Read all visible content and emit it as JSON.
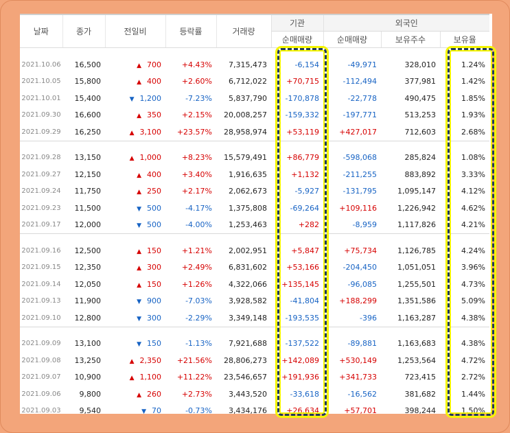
{
  "header": {
    "date": "날짜",
    "close": "종가",
    "change": "전일비",
    "rate": "등락률",
    "volume": "거래량",
    "institution": "기관",
    "inst_net": "순매매량",
    "foreign": "외국인",
    "for_net": "순매매량",
    "for_hold": "보유주수",
    "for_rate": "보유율"
  },
  "groups": [
    {
      "rows": [
        {
          "date": "2021.10.06",
          "close": "16,500",
          "dir": "up",
          "chg": "700",
          "rate": "+4.43%",
          "vol": "7,315,473",
          "inst": "-6,154",
          "fnet": "-49,971",
          "hold": "328,010",
          "hrate": "1.24%"
        },
        {
          "date": "2021.10.05",
          "close": "15,800",
          "dir": "up",
          "chg": "400",
          "rate": "+2.60%",
          "vol": "6,712,022",
          "inst": "+70,715",
          "fnet": "-112,494",
          "hold": "377,981",
          "hrate": "1.42%"
        },
        {
          "date": "2021.10.01",
          "close": "15,400",
          "dir": "down",
          "chg": "1,200",
          "rate": "-7.23%",
          "vol": "5,837,790",
          "inst": "-170,878",
          "fnet": "-22,778",
          "hold": "490,475",
          "hrate": "1.85%"
        },
        {
          "date": "2021.09.30",
          "close": "16,600",
          "dir": "up",
          "chg": "350",
          "rate": "+2.15%",
          "vol": "20,008,257",
          "inst": "-159,332",
          "fnet": "-197,771",
          "hold": "513,253",
          "hrate": "1.93%"
        },
        {
          "date": "2021.09.29",
          "close": "16,250",
          "dir": "up",
          "chg": "3,100",
          "rate": "+23.57%",
          "vol": "28,958,974",
          "inst": "+53,119",
          "fnet": "+427,017",
          "hold": "712,603",
          "hrate": "2.68%"
        }
      ]
    },
    {
      "rows": [
        {
          "date": "2021.09.28",
          "close": "13,150",
          "dir": "up",
          "chg": "1,000",
          "rate": "+8.23%",
          "vol": "15,579,491",
          "inst": "+86,779",
          "fnet": "-598,068",
          "hold": "285,824",
          "hrate": "1.08%"
        },
        {
          "date": "2021.09.27",
          "close": "12,150",
          "dir": "up",
          "chg": "400",
          "rate": "+3.40%",
          "vol": "1,916,635",
          "inst": "+1,132",
          "fnet": "-211,255",
          "hold": "883,892",
          "hrate": "3.33%"
        },
        {
          "date": "2021.09.24",
          "close": "11,750",
          "dir": "up",
          "chg": "250",
          "rate": "+2.17%",
          "vol": "2,062,673",
          "inst": "-5,927",
          "fnet": "-131,795",
          "hold": "1,095,147",
          "hrate": "4.12%"
        },
        {
          "date": "2021.09.23",
          "close": "11,500",
          "dir": "down",
          "chg": "500",
          "rate": "-4.17%",
          "vol": "1,375,808",
          "inst": "-69,264",
          "fnet": "+109,116",
          "hold": "1,226,942",
          "hrate": "4.62%"
        },
        {
          "date": "2021.09.17",
          "close": "12,000",
          "dir": "down",
          "chg": "500",
          "rate": "-4.00%",
          "vol": "1,253,463",
          "inst": "+282",
          "fnet": "-8,959",
          "hold": "1,117,826",
          "hrate": "4.21%"
        }
      ]
    },
    {
      "rows": [
        {
          "date": "2021.09.16",
          "close": "12,500",
          "dir": "up",
          "chg": "150",
          "rate": "+1.21%",
          "vol": "2,002,951",
          "inst": "+5,847",
          "fnet": "+75,734",
          "hold": "1,126,785",
          "hrate": "4.24%"
        },
        {
          "date": "2021.09.15",
          "close": "12,350",
          "dir": "up",
          "chg": "300",
          "rate": "+2.49%",
          "vol": "6,831,602",
          "inst": "+53,166",
          "fnet": "-204,450",
          "hold": "1,051,051",
          "hrate": "3.96%"
        },
        {
          "date": "2021.09.14",
          "close": "12,050",
          "dir": "up",
          "chg": "150",
          "rate": "+1.26%",
          "vol": "4,322,066",
          "inst": "+135,145",
          "fnet": "-96,085",
          "hold": "1,255,501",
          "hrate": "4.73%"
        },
        {
          "date": "2021.09.13",
          "close": "11,900",
          "dir": "down",
          "chg": "900",
          "rate": "-7.03%",
          "vol": "3,928,582",
          "inst": "-41,804",
          "fnet": "+188,299",
          "hold": "1,351,586",
          "hrate": "5.09%"
        },
        {
          "date": "2021.09.10",
          "close": "12,800",
          "dir": "down",
          "chg": "300",
          "rate": "-2.29%",
          "vol": "3,349,148",
          "inst": "-193,535",
          "fnet": "-396",
          "hold": "1,163,287",
          "hrate": "4.38%"
        }
      ]
    },
    {
      "rows": [
        {
          "date": "2021.09.09",
          "close": "13,100",
          "dir": "down",
          "chg": "150",
          "rate": "-1.13%",
          "vol": "7,921,688",
          "inst": "-137,522",
          "fnet": "-89,881",
          "hold": "1,163,683",
          "hrate": "4.38%"
        },
        {
          "date": "2021.09.08",
          "close": "13,250",
          "dir": "up",
          "chg": "2,350",
          "rate": "+21.56%",
          "vol": "28,806,273",
          "inst": "+142,089",
          "fnet": "+530,149",
          "hold": "1,253,564",
          "hrate": "4.72%"
        },
        {
          "date": "2021.09.07",
          "close": "10,900",
          "dir": "up",
          "chg": "1,100",
          "rate": "+11.22%",
          "vol": "23,546,657",
          "inst": "+191,936",
          "fnet": "+341,733",
          "hold": "723,415",
          "hrate": "2.72%"
        },
        {
          "date": "2021.09.06",
          "close": "9,800",
          "dir": "up",
          "chg": "260",
          "rate": "+2.73%",
          "vol": "3,443,520",
          "inst": "-33,618",
          "fnet": "-16,562",
          "hold": "381,682",
          "hrate": "1.44%"
        },
        {
          "date": "2021.09.03",
          "close": "9,540",
          "dir": "down",
          "chg": "70",
          "rate": "-0.73%",
          "vol": "3,434,176",
          "inst": "+26,634",
          "fnet": "+57,701",
          "hold": "398,244",
          "hrate": "1.50%"
        }
      ]
    }
  ],
  "symbols": {
    "up": "▲",
    "down": "▼"
  },
  "colors": {
    "up": "#d60000",
    "down": "#1763c4",
    "highlight_fill": "#f5f500",
    "highlight_dash": "#1f3a5a",
    "frame": "#f3a57a"
  }
}
